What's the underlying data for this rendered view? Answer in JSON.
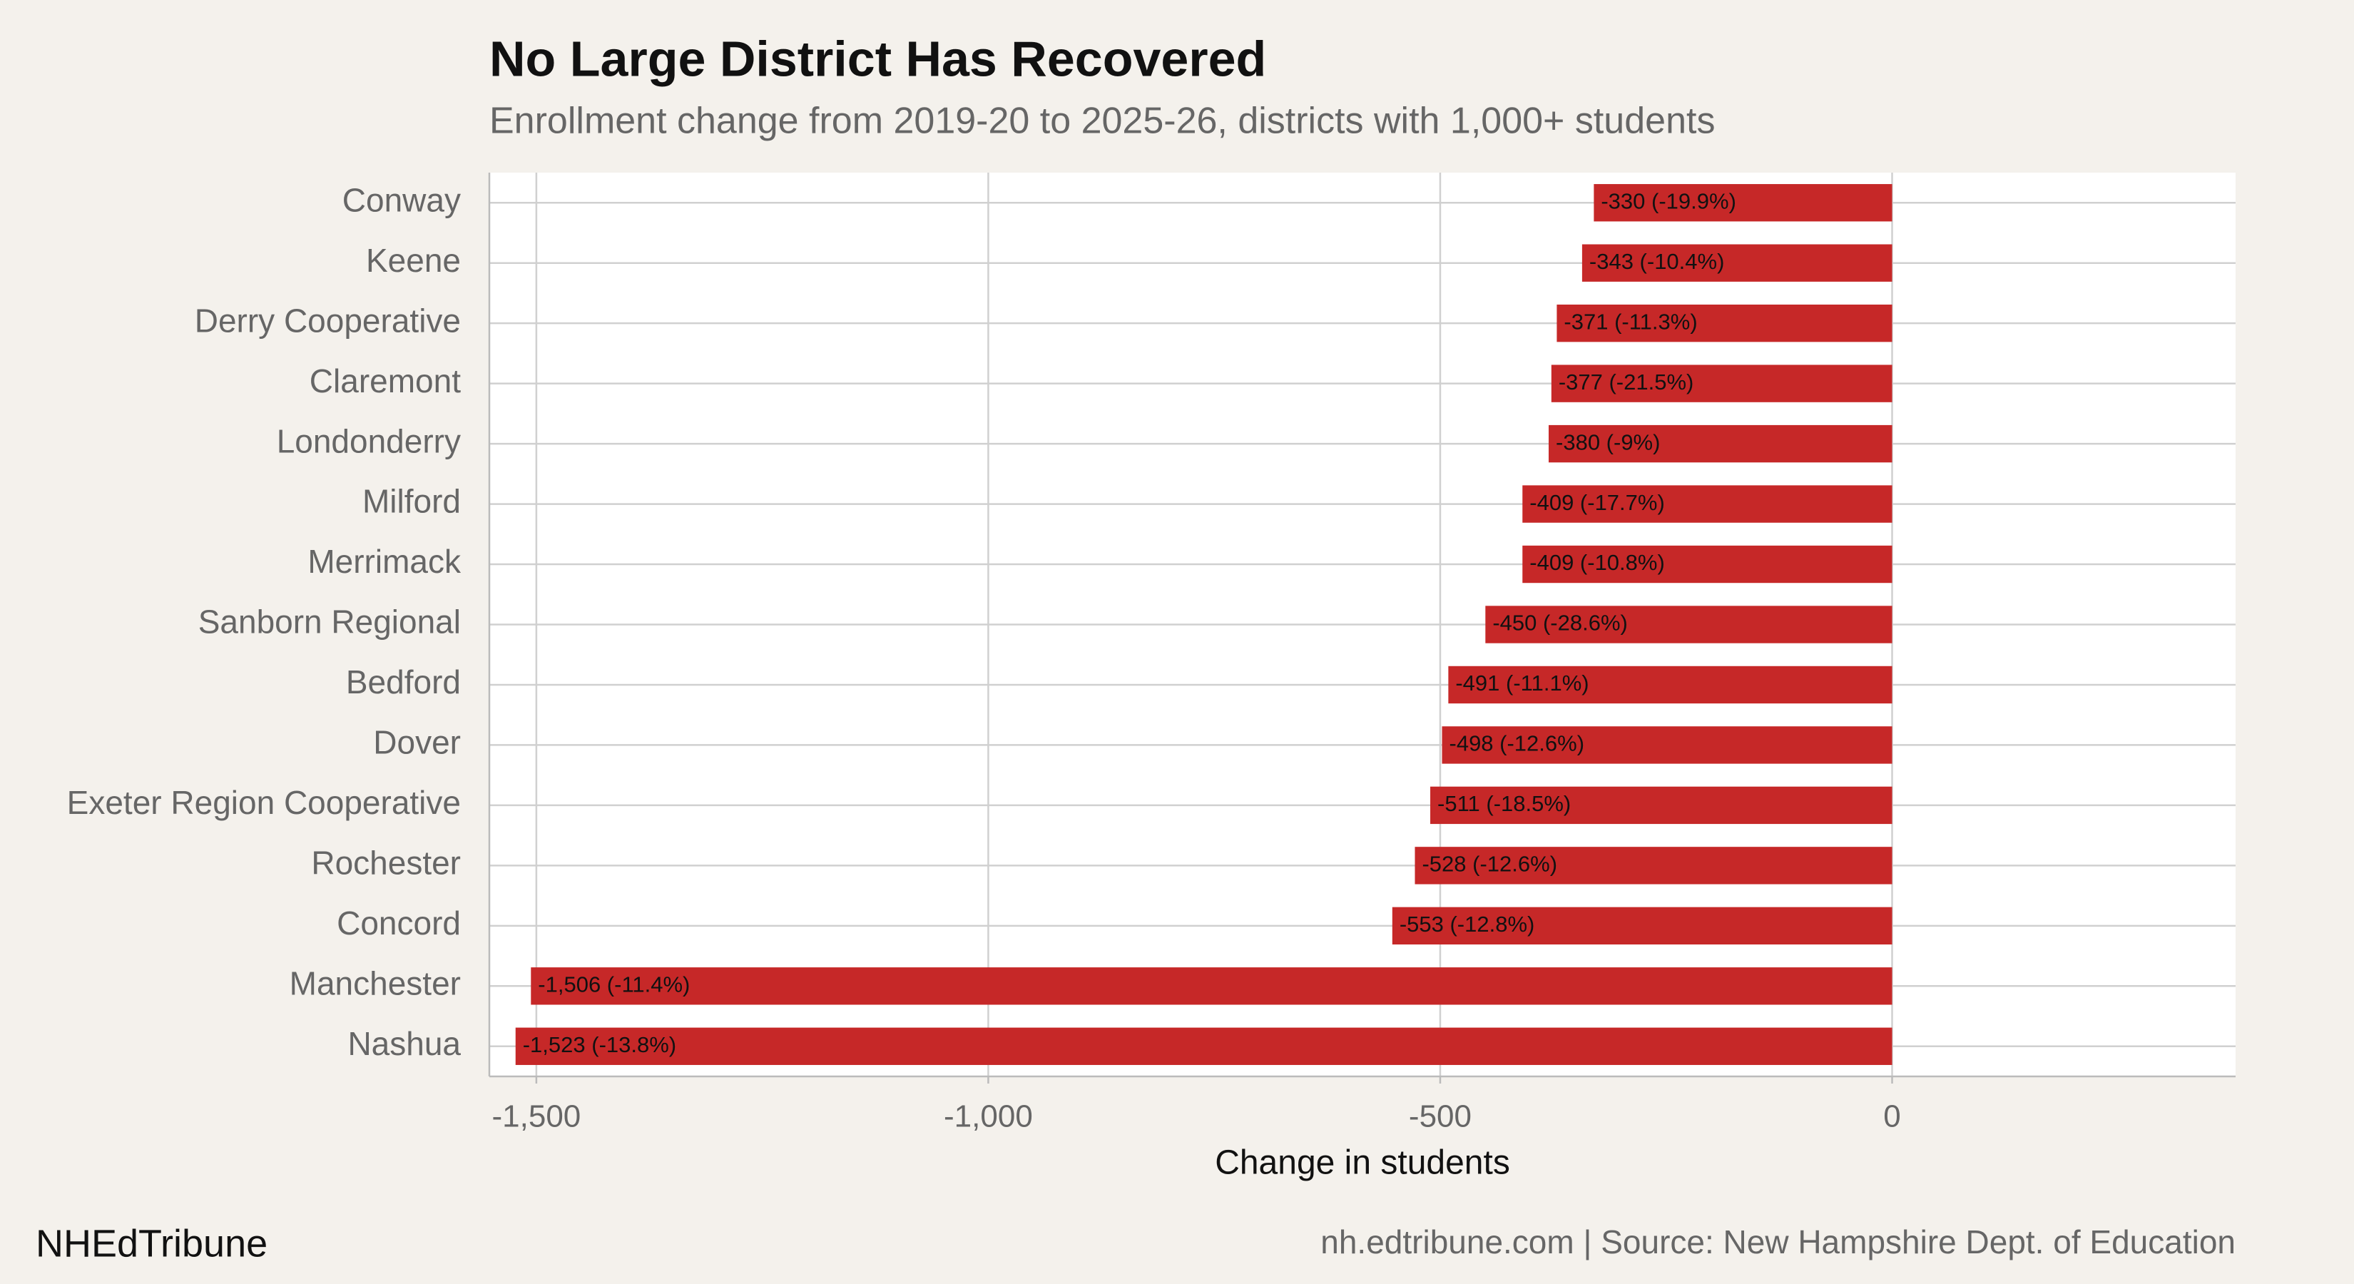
{
  "chart_data": {
    "type": "bar",
    "orientation": "horizontal",
    "title": "No Large District Has Recovered",
    "subtitle": "Enrollment change from 2019-20 to 2025-26, districts with 1,000+ students",
    "x_label": "Change in students",
    "source": "nh.edtribune.com | Source: New Hampshire Dept. of Education",
    "brand": "NHEdTribune",
    "categories": [
      "Conway",
      "Keene",
      "Derry Cooperative",
      "Claremont",
      "Londonderry",
      "Milford",
      "Merrimack",
      "Sanborn Regional",
      "Bedford",
      "Dover",
      "Exeter Region Cooperative",
      "Rochester",
      "Concord",
      "Manchester",
      "Nashua"
    ],
    "values": [
      -330,
      -343,
      -371,
      -377,
      -380,
      -409,
      -409,
      -450,
      -491,
      -498,
      -511,
      -528,
      -553,
      -1506,
      -1523
    ],
    "value_labels": [
      "-330 (-19.9%)",
      "-343 (-10.4%)",
      "-371 (-11.3%)",
      "-377 (-21.5%)",
      "-380 (-9%)",
      "-409 (-17.7%)",
      "-409 (-10.8%)",
      "-450 (-28.6%)",
      "-491 (-11.1%)",
      "-498 (-12.6%)",
      "-511 (-18.5%)",
      "-528 (-12.6%)",
      "-553 (-12.8%)",
      "-1,506 (-11.4%)",
      "-1,523 (-13.8%)"
    ],
    "color": "#c62828",
    "xlim": [
      -1552,
      380
    ],
    "xticks": [
      {
        "value": -1500,
        "label": "-1,500"
      },
      {
        "value": -1000,
        "label": "-1,000"
      },
      {
        "value": -500,
        "label": "-500"
      },
      0
    ],
    "grid": true
  }
}
